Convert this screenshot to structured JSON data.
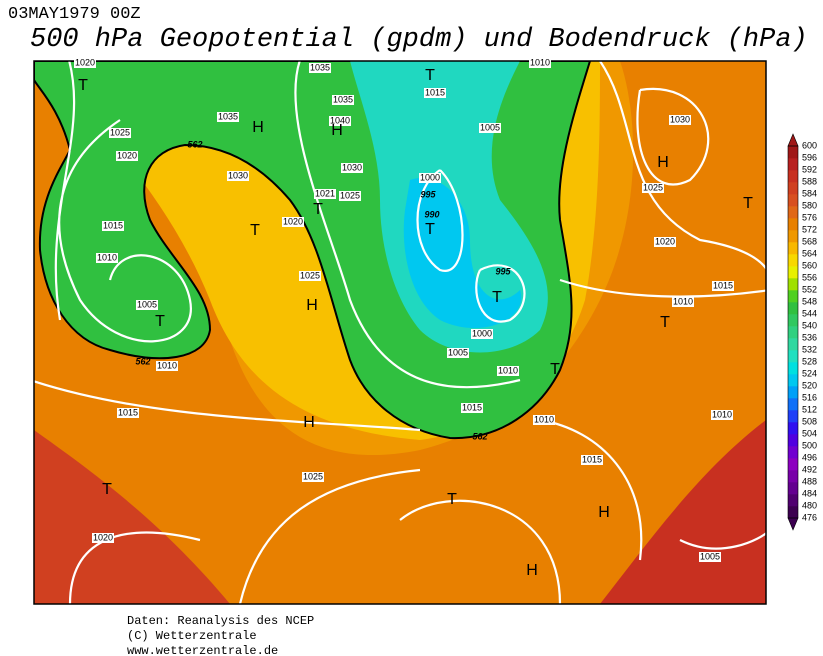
{
  "header": {
    "date": "03MAY1979 00Z",
    "title": "500 hPa Geopotential (gpdm) und Bodendruck (hPa)"
  },
  "map": {
    "labels": [
      1020,
      1035,
      1010,
      "T",
      1015,
      "T",
      1035,
      "H",
      1040,
      "H",
      1035,
      1005,
      1030,
      1025,
      1020,
      562,
      "H",
      1030,
      1030,
      1000,
      1025,
      1021,
      1025,
      "T",
      995,
      "T",
      990,
      1020,
      "T",
      "T",
      1015,
      1020,
      1010,
      995,
      1025,
      "T",
      1015,
      "H",
      1010,
      1005,
      "T",
      "T",
      1000,
      1005,
      1010,
      562,
      1010,
      "T",
      1015,
      1015,
      1010,
      1010,
      "H",
      562,
      1015,
      1025,
      "T",
      "T",
      "H",
      1020,
      "H",
      1005
    ]
  },
  "colorbar": {
    "levels": [
      476,
      480,
      484,
      488,
      492,
      496,
      500,
      504,
      508,
      512,
      516,
      520,
      524,
      528,
      532,
      536,
      540,
      544,
      548,
      552,
      556,
      560,
      564,
      568,
      572,
      576,
      580,
      584,
      588,
      592,
      596,
      600
    ],
    "colors": [
      "#3c0050",
      "#500070",
      "#640090",
      "#7800a8",
      "#8c00c0",
      "#7000d0",
      "#5000e0",
      "#3010f0",
      "#2040f8",
      "#1070f8",
      "#00a0f8",
      "#00c8f0",
      "#00e0e0",
      "#20e0c0",
      "#30d8a0",
      "#30d080",
      "#30c860",
      "#30c040",
      "#50d020",
      "#a0e000",
      "#e8f000",
      "#f8d800",
      "#f8b800",
      "#f09800",
      "#e88000",
      "#e06818",
      "#d85020",
      "#d04020",
      "#c83020",
      "#b82020",
      "#a01818"
    ]
  },
  "footer": {
    "lines": [
      "Daten: Reanalysis des NCEP",
      "(C) Wetterzentrale",
      "www.wetterzentrale.de"
    ]
  }
}
